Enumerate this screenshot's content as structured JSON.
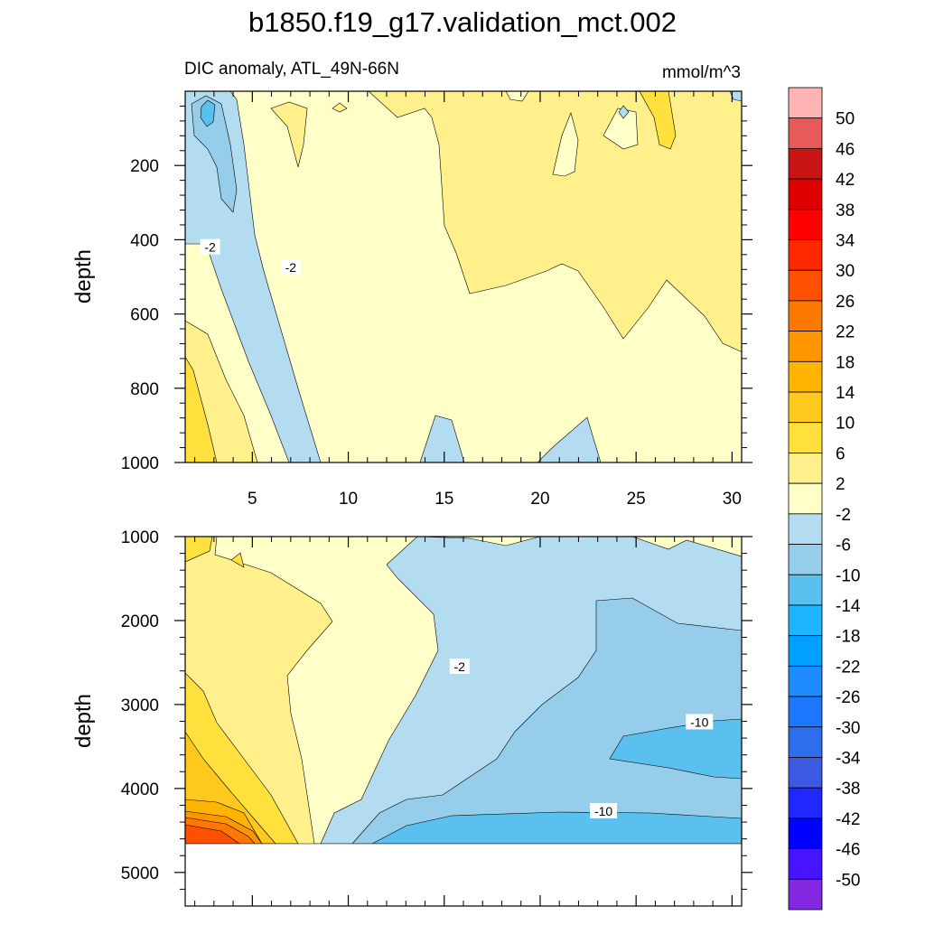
{
  "chart_data": {
    "type": "contour",
    "title": "b1850.f19_g17.validation_mct.002",
    "subtitle_left": "DIC anomaly, ATL_49N-66N",
    "subtitle_right": "mmol/m^3",
    "upper_panel": {
      "ylabel": "depth",
      "xlim": [
        1.5,
        30.5
      ],
      "ylim": [
        0,
        1000
      ],
      "xticks": [
        5,
        10,
        15,
        20,
        25,
        30
      ],
      "yticks": [
        200,
        400,
        600,
        800,
        1000
      ],
      "contour_labels": [
        {
          "text": "-2",
          "x": 2.8,
          "y": 420
        },
        {
          "text": "-2",
          "x": 7.0,
          "y": 475
        }
      ]
    },
    "lower_panel": {
      "ylabel": "depth",
      "xlim": [
        1.5,
        30.5
      ],
      "ylim": [
        1000,
        5400
      ],
      "yticks": [
        1000,
        2000,
        3000,
        4000,
        5000
      ],
      "data_bottom_depth": 4620,
      "contour_labels": [
        {
          "text": "-2",
          "x": 15.8,
          "y": 2550
        },
        {
          "text": "-10",
          "x": 28.3,
          "y": 3210
        },
        {
          "text": "-10",
          "x": 23.3,
          "y": 4270
        }
      ]
    },
    "colorbar": {
      "labels": [
        "50",
        "46",
        "42",
        "38",
        "34",
        "30",
        "26",
        "22",
        "18",
        "14",
        "10",
        "6",
        "2",
        "-2",
        "-6",
        "-10",
        "-14",
        "-18",
        "-22",
        "-26",
        "-30",
        "-34",
        "-38",
        "-42",
        "-46",
        "-50"
      ],
      "colors": [
        "#ffb3b3",
        "#e85a5a",
        "#c81414",
        "#de0000",
        "#ff0000",
        "#ff2800",
        "#ff5000",
        "#ff7800",
        "#ff9600",
        "#ffb400",
        "#ffc81e",
        "#ffe03c",
        "#fff08c",
        "#ffffc8",
        "#b4dcf0",
        "#96cdeb",
        "#5ac0f0",
        "#1eb4ff",
        "#00a0ff",
        "#1e8cff",
        "#1e78ff",
        "#2d6eeb",
        "#3c5ae1",
        "#1e28ff",
        "#0000ff",
        "#4614ff",
        "#8228e1"
      ]
    }
  }
}
